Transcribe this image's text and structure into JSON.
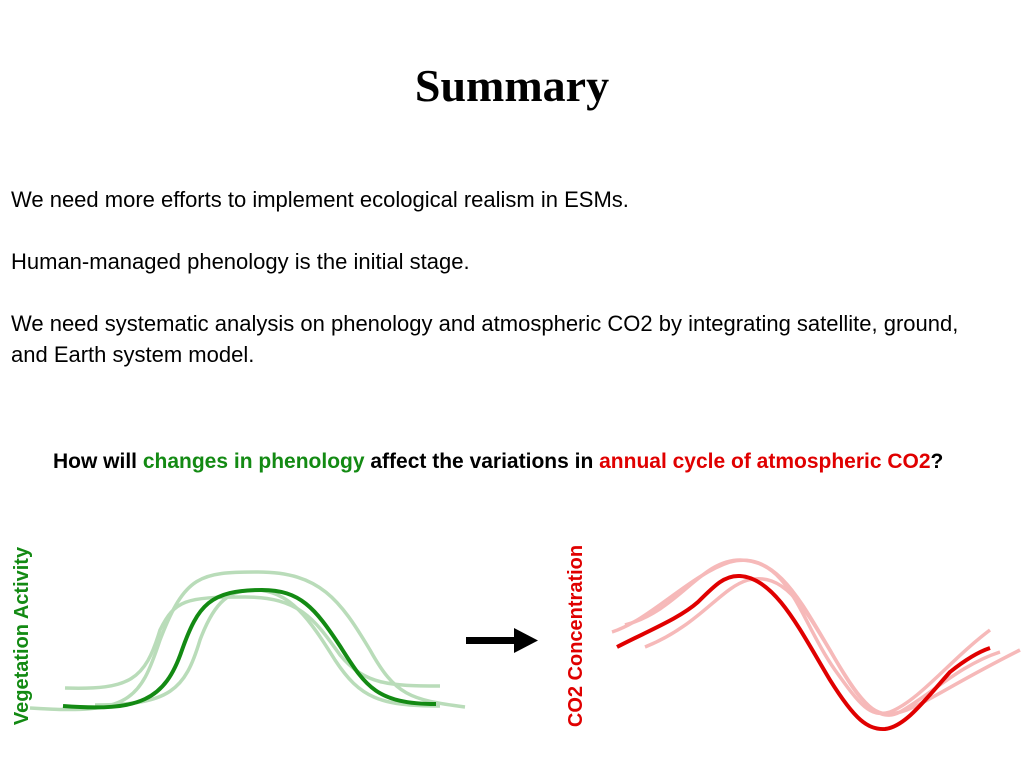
{
  "slide": {
    "title": "Summary",
    "paragraphs": [
      "We need more efforts to implement ecological realism in ESMs.",
      "Human-managed phenology is the initial stage.",
      "We need systematic analysis on phenology and atmospheric CO2 by integrating satellite, ground, and Earth system model."
    ],
    "question": {
      "part1": "How will ",
      "part2": "changes in phenology",
      "part3": " affect the variations in ",
      "part4": "annual cycle of atmospheric CO2",
      "part5": "?"
    },
    "left_axis_label": "Vegetation Activity",
    "right_axis_label": "CO2 Concentration"
  },
  "colors": {
    "green_main": "#138a13",
    "green_faint": "#b9dcb9",
    "red_main": "#e00000",
    "red_faint": "#f6b9b9"
  }
}
